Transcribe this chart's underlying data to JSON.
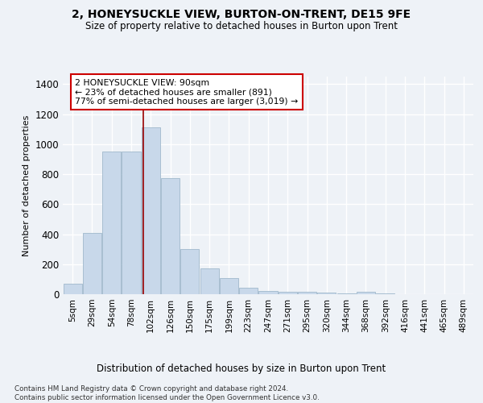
{
  "title": "2, HONEYSUCKLE VIEW, BURTON-ON-TRENT, DE15 9FE",
  "subtitle": "Size of property relative to detached houses in Burton upon Trent",
  "xlabel": "Distribution of detached houses by size in Burton upon Trent",
  "ylabel": "Number of detached properties",
  "bar_color": "#c8d8ea",
  "bar_edge_color": "#a0b8cc",
  "categories": [
    "5sqm",
    "29sqm",
    "54sqm",
    "78sqm",
    "102sqm",
    "126sqm",
    "150sqm",
    "175sqm",
    "199sqm",
    "223sqm",
    "247sqm",
    "271sqm",
    "295sqm",
    "320sqm",
    "344sqm",
    "368sqm",
    "392sqm",
    "416sqm",
    "441sqm",
    "465sqm",
    "489sqm"
  ],
  "values": [
    70,
    410,
    950,
    950,
    1110,
    775,
    300,
    170,
    105,
    42,
    20,
    15,
    15,
    10,
    8,
    15,
    5,
    2,
    2,
    2,
    0
  ],
  "ylim": [
    0,
    1450
  ],
  "yticks": [
    0,
    200,
    400,
    600,
    800,
    1000,
    1200,
    1400
  ],
  "red_line_x": 3.62,
  "annotation_text": "2 HONEYSUCKLE VIEW: 90sqm\n← 23% of detached houses are smaller (891)\n77% of semi-detached houses are larger (3,019) →",
  "annotation_box_color": "#ffffff",
  "annotation_border_color": "#cc0000",
  "footer_text": "Contains HM Land Registry data © Crown copyright and database right 2024.\nContains public sector information licensed under the Open Government Licence v3.0.",
  "background_color": "#eef2f7",
  "grid_color": "#ffffff"
}
